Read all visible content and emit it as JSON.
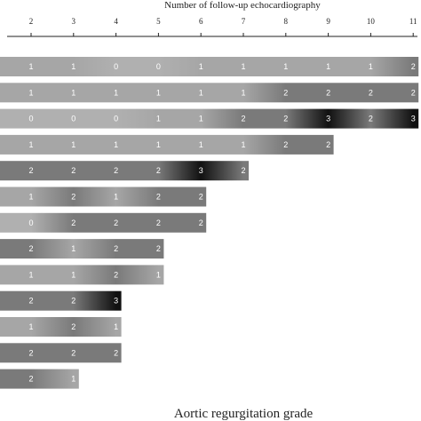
{
  "chart_data": {
    "type": "bar",
    "title": "Number of follow-up echocardiography",
    "xlabel": "Aortic regurgitation grade",
    "ylabel": "",
    "x_ticks": [
      2,
      3,
      4,
      5,
      6,
      7,
      8,
      9,
      10,
      11
    ],
    "xlim": [
      1.5,
      11
    ],
    "rows": [
      {
        "grades": [
          1,
          1,
          0,
          0,
          1,
          1,
          1,
          1,
          1,
          2
        ]
      },
      {
        "grades": [
          1,
          1,
          1,
          1,
          1,
          1,
          2,
          2,
          2,
          2
        ]
      },
      {
        "grades": [
          0,
          0,
          0,
          1,
          1,
          2,
          2,
          3,
          2,
          3
        ]
      },
      {
        "grades": [
          1,
          1,
          1,
          1,
          1,
          1,
          2,
          2
        ]
      },
      {
        "grades": [
          2,
          2,
          2,
          2,
          3,
          2
        ]
      },
      {
        "grades": [
          1,
          2,
          1,
          2,
          2
        ]
      },
      {
        "grades": [
          0,
          2,
          2,
          2,
          2
        ]
      },
      {
        "grades": [
          2,
          1,
          2,
          2
        ]
      },
      {
        "grades": [
          1,
          1,
          2,
          1
        ]
      },
      {
        "grades": [
          2,
          2,
          3
        ]
      },
      {
        "grades": [
          1,
          2,
          1
        ]
      },
      {
        "grades": [
          2,
          2,
          2
        ]
      },
      {
        "grades": [
          2,
          1
        ]
      }
    ],
    "grade_colors": {
      "0": "#b0b0b0",
      "1": "#a6a6a6",
      "2": "#7a7a7a",
      "3": "#111111"
    },
    "grid": false,
    "legend": "none"
  }
}
